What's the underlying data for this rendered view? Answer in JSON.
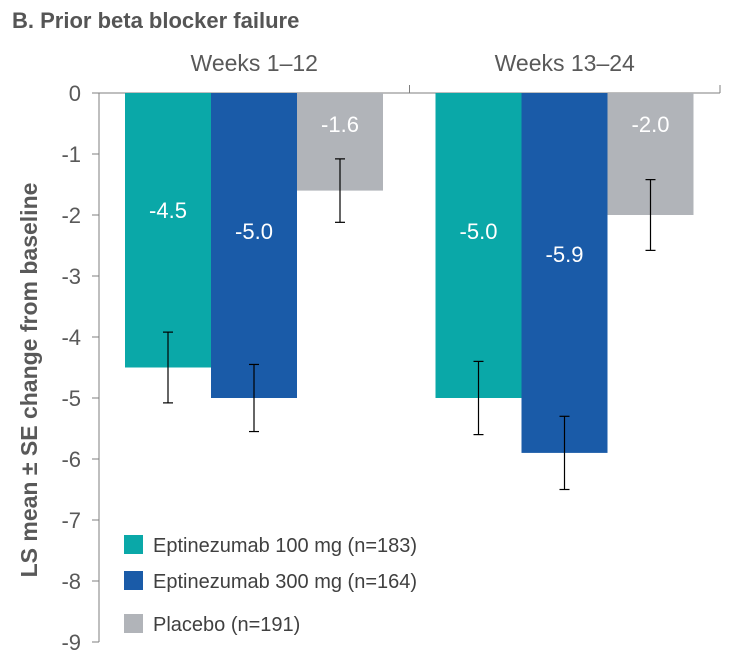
{
  "chart_data": {
    "type": "bar",
    "title": "B.  Prior beta blocker failure",
    "ylabel": "LS mean ± SE change from baseline",
    "categories": [
      "Weeks  1–12",
      "Weeks  13–24"
    ],
    "series": [
      {
        "name": "Eptinezumab 100 mg (n=183)",
        "color": "#0aa8a8",
        "values": [
          -4.5,
          -5.0
        ],
        "value_labels": [
          "-4.5",
          "-5.0"
        ],
        "se": [
          0.58,
          0.6
        ]
      },
      {
        "name": "Eptinezumab 300 mg (n=164)",
        "color": "#1a5ba8",
        "values": [
          -5.0,
          -5.9
        ],
        "value_labels": [
          "-5.0",
          "-5.9"
        ],
        "se": [
          0.55,
          0.6
        ]
      },
      {
        "name": "Placebo (n=191)",
        "color": "#b1b4b9",
        "values": [
          -1.6,
          -2.0
        ],
        "value_labels": [
          "-1.6",
          "-2.0"
        ],
        "se": [
          0.52,
          0.58
        ]
      }
    ],
    "yticks": [
      "0",
      "-1",
      "-2",
      "-3",
      "-4",
      "-5",
      "-6",
      "-7",
      "-8",
      "-9"
    ],
    "ylim": [
      -9,
      0
    ],
    "legend_position": "bottom-left",
    "grid": false
  }
}
